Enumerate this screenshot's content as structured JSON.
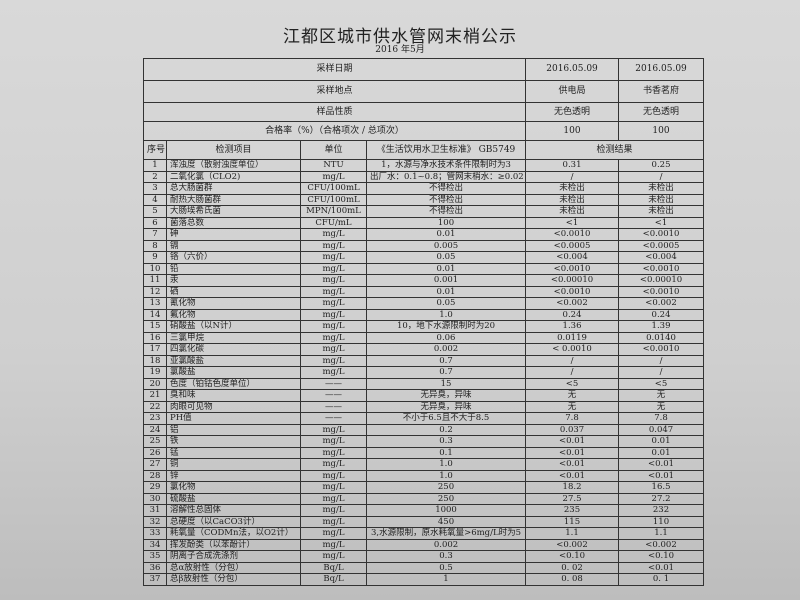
{
  "title": "江都区城市供水管网末梢公示",
  "subtitle": "2016 年5月",
  "header": {
    "sample_date_label": "采样日期",
    "sample_date": [
      "2016.05.09",
      "2016.05.09"
    ],
    "location_label": "采样地点",
    "location": [
      "供电局",
      "书香茗府"
    ],
    "nature_label": "样品性质",
    "nature": [
      "无色透明",
      "无色透明"
    ],
    "pass_rate_label": "合格率（%）（合格项次 / 总项次）",
    "pass_rate": [
      "100",
      "100"
    ]
  },
  "columns": {
    "no": "序号",
    "item": "检测项目",
    "unit": "单位",
    "standard": "《生活饮用水卫生标准》 GB5749",
    "result": "检测结果"
  },
  "rows": [
    [
      "1",
      "浑浊度（散射浊度单位）",
      "NTU",
      "1，水源与净水技术条件限制时为3",
      "0.31",
      "0.25"
    ],
    [
      "2",
      "二氧化氯（CLO2)",
      "mg/L",
      "出厂水：0.1~0.8；管网末梢水：≥0.02",
      "/",
      "/"
    ],
    [
      "3",
      "总大肠菌群",
      "CFU/100mL",
      "不得检出",
      "未检出",
      "未检出"
    ],
    [
      "4",
      "耐热大肠菌群",
      "CFU/100mL",
      "不得检出",
      "未检出",
      "未检出"
    ],
    [
      "5",
      "大肠埃希氏菌",
      "MPN/100mL",
      "不得检出",
      "未检出",
      "未检出"
    ],
    [
      "6",
      "菌落总数",
      "CFU/mL",
      "100",
      "<1",
      "<1"
    ],
    [
      "7",
      "砷",
      "mg/L",
      "0.01",
      "<0.0010",
      "<0.0010"
    ],
    [
      "8",
      "镉",
      "mg/L",
      "0.005",
      "<0.0005",
      "<0.0005"
    ],
    [
      "9",
      "铬（六价）",
      "mg/L",
      "0.05",
      "<0.004",
      "<0.004"
    ],
    [
      "10",
      "铅",
      "mg/L",
      "0.01",
      "<0.0010",
      "<0.0010"
    ],
    [
      "11",
      "汞",
      "mg/L",
      "0.001",
      "<0.00010",
      "<0.00010"
    ],
    [
      "12",
      "硒",
      "mg/L",
      "0.01",
      "<0.0010",
      "<0.0010"
    ],
    [
      "13",
      "氰化物",
      "mg/L",
      "0.05",
      "<0.002",
      "<0.002"
    ],
    [
      "14",
      "氟化物",
      "mg/L",
      "1.0",
      "0.24",
      "0.24"
    ],
    [
      "15",
      "硝酸盐（以N计）",
      "mg/L",
      "10，地下水源限制时为20",
      "1.36",
      "1.39"
    ],
    [
      "16",
      "三氯甲烷",
      "mg/L",
      "0.06",
      "0.0119",
      "0.0140"
    ],
    [
      "17",
      "四氯化碳",
      "mg/L",
      "0.002",
      "< 0.0010",
      "<0.0010"
    ],
    [
      "18",
      "亚氯酸盐",
      "mg/L",
      "0.7",
      "/",
      "/"
    ],
    [
      "19",
      "氯酸盐",
      "mg/L",
      "0.7",
      "/",
      "/"
    ],
    [
      "20",
      "色度（铂钴色度单位）",
      "——",
      "15",
      "<5",
      "<5"
    ],
    [
      "21",
      "臭和味",
      "——",
      "无异臭，异味",
      "无",
      "无"
    ],
    [
      "22",
      "肉眼可见物",
      "——",
      "无异臭，异味",
      "无",
      "无"
    ],
    [
      "23",
      "PH值",
      "——",
      "不小于6.5且不大于8.5",
      "7.8",
      "7.8"
    ],
    [
      "24",
      "铝",
      "mg/L",
      "0.2",
      "0.037",
      "0.047"
    ],
    [
      "25",
      "铁",
      "mg/L",
      "0.3",
      "<0.01",
      "0.01"
    ],
    [
      "26",
      "锰",
      "mg/L",
      "0.1",
      "<0.01",
      "0.01"
    ],
    [
      "27",
      "铜",
      "mg/L",
      "1.0",
      "<0.01",
      "<0.01"
    ],
    [
      "28",
      "锌",
      "mg/L",
      "1.0",
      "<0.01",
      "<0.01"
    ],
    [
      "29",
      "氯化物",
      "mg/L",
      "250",
      "18.2",
      "16.5"
    ],
    [
      "30",
      "硫酸盐",
      "mg/L",
      "250",
      "27.5",
      "27.2"
    ],
    [
      "31",
      "溶解性总固体",
      "mg/L",
      "1000",
      "235",
      "232"
    ],
    [
      "32",
      "总硬度（以CaCO3计）",
      "mg/L",
      "450",
      "115",
      "110"
    ],
    [
      "33",
      "耗氧量（CODMn法，以O2计）",
      "mg/L",
      "3,水源限制，原水耗氧量>6mg/L时为5",
      "1.1",
      "1.1"
    ],
    [
      "34",
      "挥发酚类（以苯酚计）",
      "mg/L",
      "0.002",
      "<0.002",
      "<0.002"
    ],
    [
      "35",
      "阴离子合成洗涤剂",
      "mg/L",
      "0.3",
      "<0.10",
      "<0.10"
    ],
    [
      "36",
      "总α放射性（分包）",
      "Bq/L",
      "0.5",
      "0. 02",
      "<0.01"
    ],
    [
      "37",
      "总β放射性（分包）",
      "Bq/L",
      "1",
      "0. 08",
      "0. 1"
    ]
  ]
}
